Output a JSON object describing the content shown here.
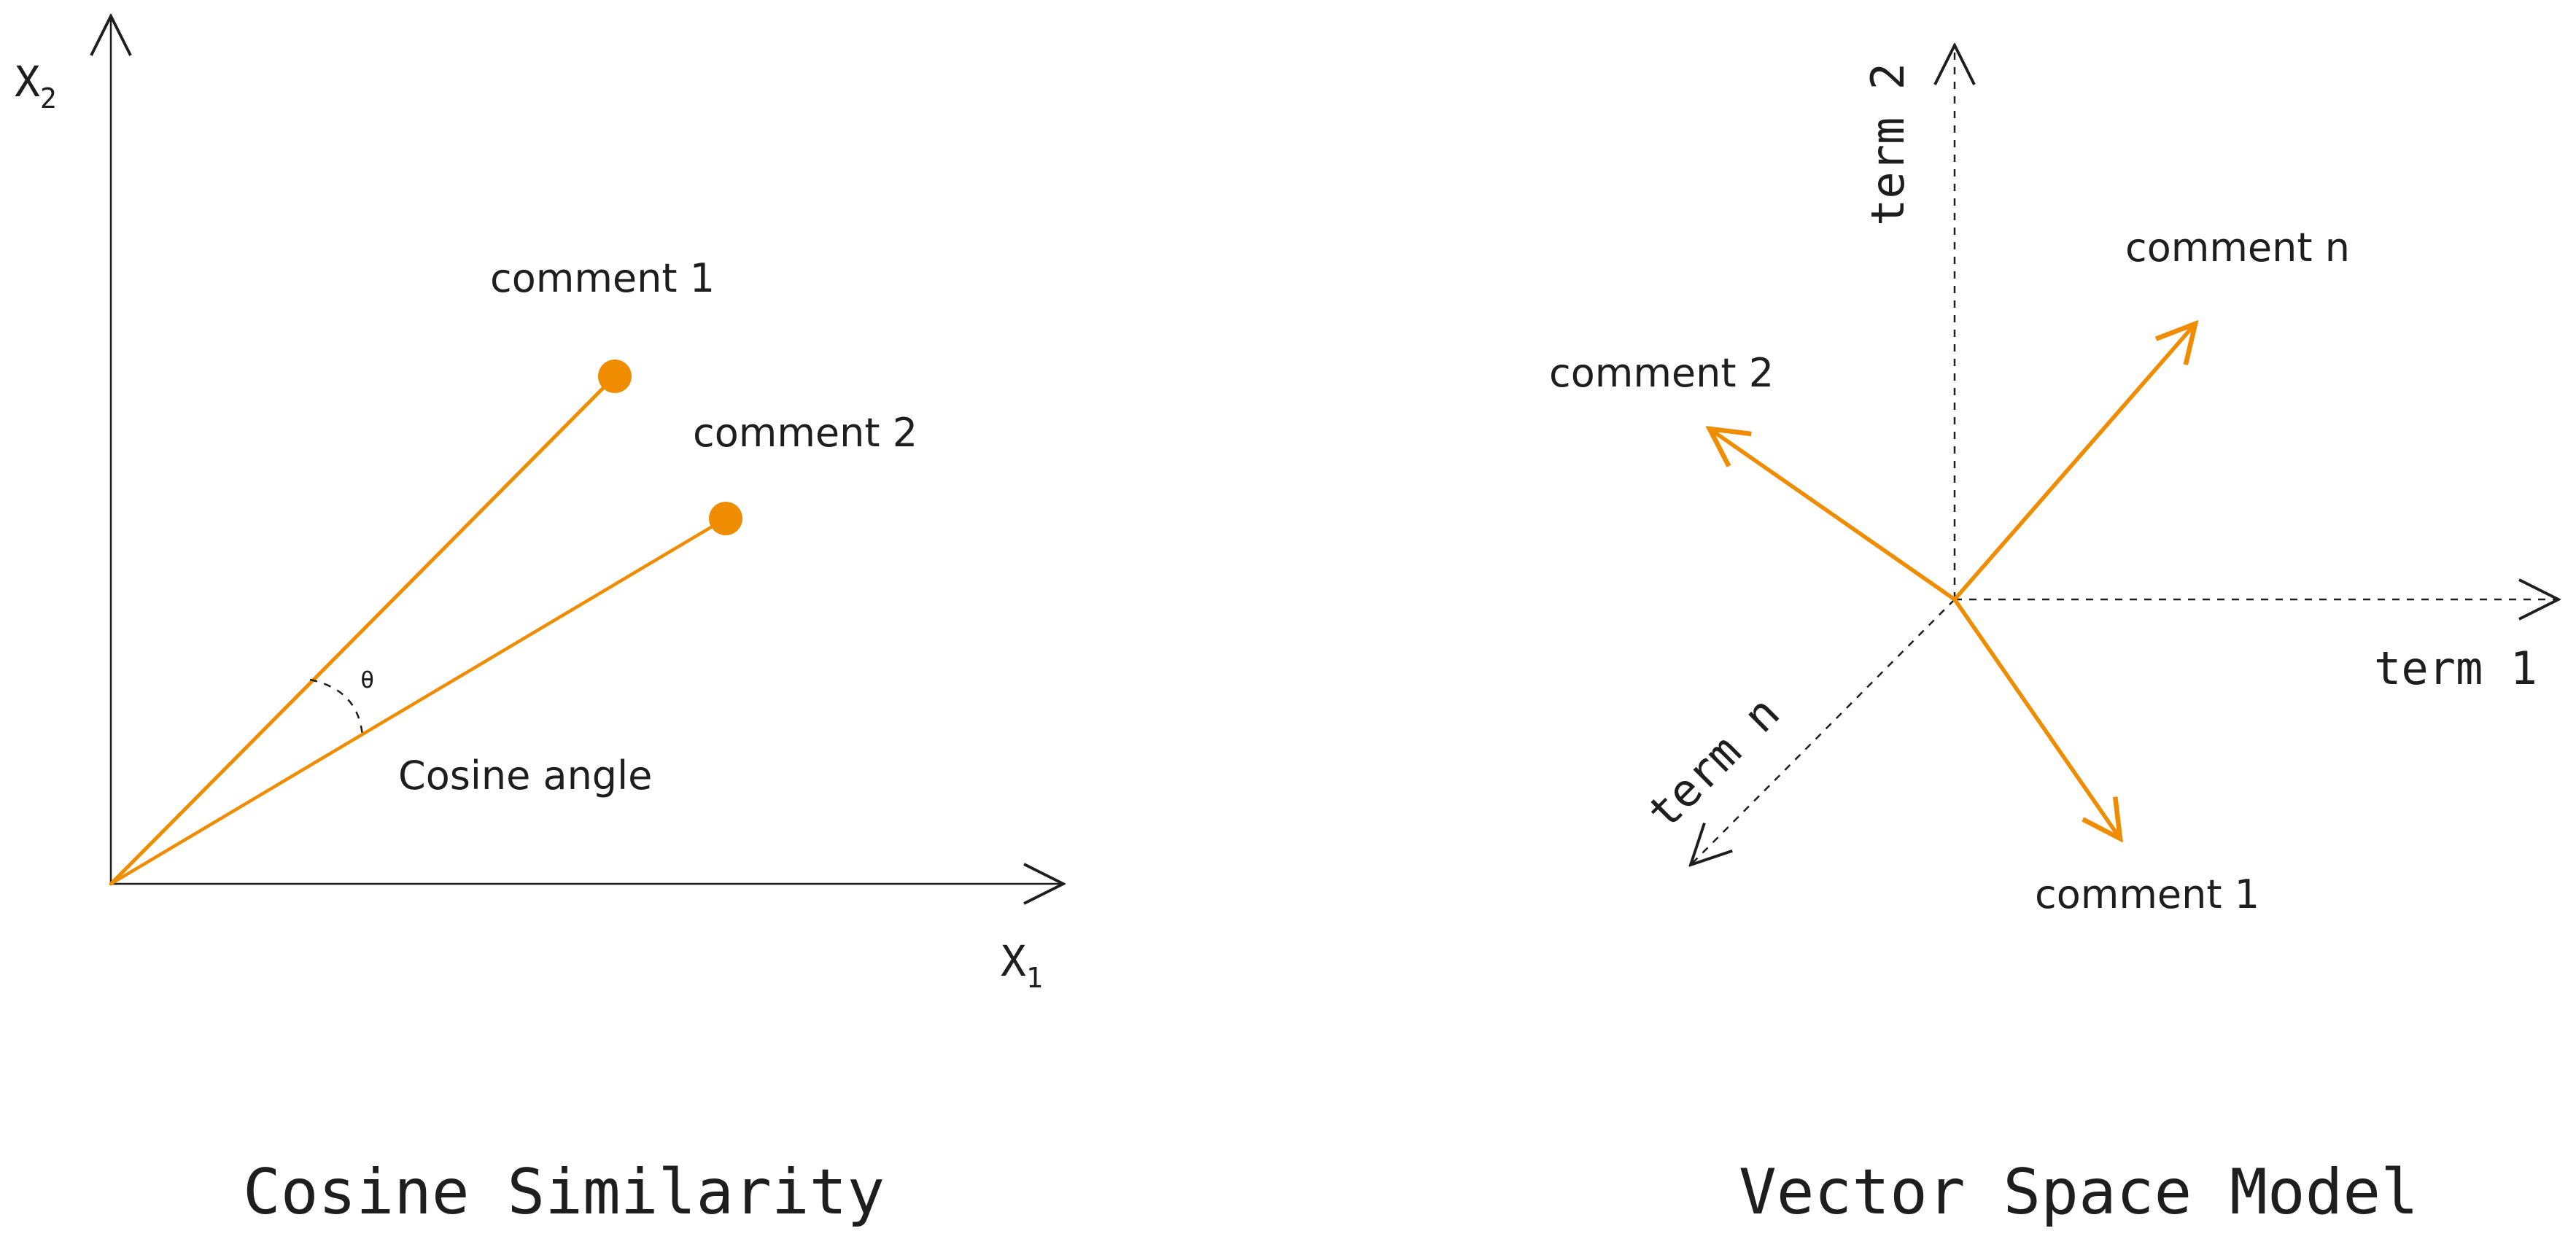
{
  "colors": {
    "accent": "#f08c00",
    "ink": "#1e1e1e",
    "background": "#ffffff"
  },
  "cosine_similarity": {
    "title": "Cosine Similarity",
    "x_axis_label": "X",
    "x_axis_subscript": "1",
    "y_axis_label": "X",
    "y_axis_subscript": "2",
    "vectors": [
      {
        "label": "comment 1"
      },
      {
        "label": "comment 2"
      }
    ],
    "angle_symbol": "θ",
    "angle_label": "Cosine angle"
  },
  "vector_space_model": {
    "title": "Vector Space Model",
    "axes": [
      {
        "label": "term 1",
        "direction": "right"
      },
      {
        "label": "term 2",
        "direction": "up"
      },
      {
        "label": "term n",
        "direction": "down-left"
      }
    ],
    "vectors": [
      {
        "label": "comment 1"
      },
      {
        "label": "comment 2"
      },
      {
        "label": "comment n"
      }
    ]
  }
}
